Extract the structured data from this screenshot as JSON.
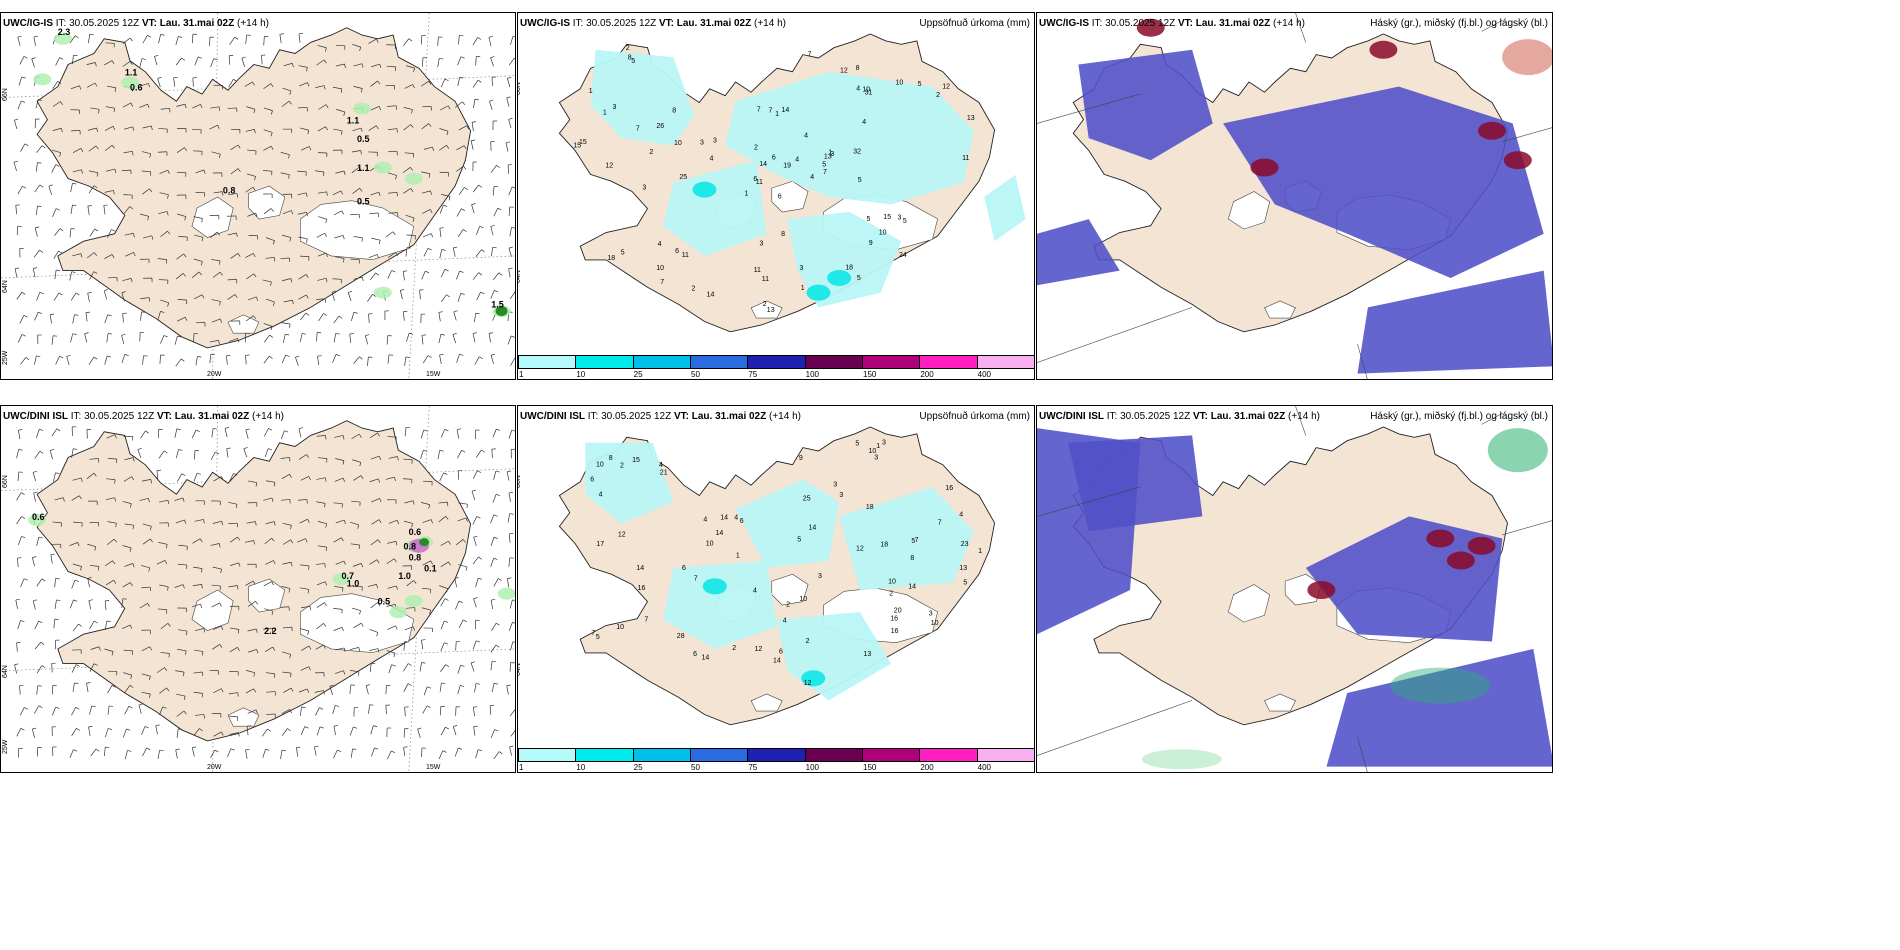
{
  "panels": [
    {
      "id": "r1c1",
      "model": "UWC/IG-IS",
      "it": "30.05.2025 12Z",
      "vt": "Lau. 31.mai 02Z",
      "lead": "(+14 h)",
      "right_title": "",
      "type": "wind"
    },
    {
      "id": "r1c2",
      "model": "UWC/IG-IS",
      "it": "30.05.2025 12Z",
      "vt": "Lau. 31.mai 02Z",
      "lead": "(+14 h)",
      "right_title": "Uppsöfnuð úrkoma (mm)",
      "type": "precip"
    },
    {
      "id": "r1c3",
      "model": "UWC/IG-IS",
      "it": "30.05.2025 12Z",
      "vt": "Lau. 31.mai 02Z",
      "lead": "(+14 h)",
      "right_title": "Háský (gr.), miðský (fj.bl.) og lágský (bl.)",
      "type": "cloud"
    },
    {
      "id": "r2c1",
      "model": "UWC/DINI ISL",
      "it": "30.05.2025 12Z",
      "vt": "Lau. 31.mai 02Z",
      "lead": "(+14 h)",
      "right_title": "",
      "type": "wind"
    },
    {
      "id": "r2c2",
      "model": "UWC/DINI ISL",
      "it": "30.05.2025 12Z",
      "vt": "Lau. 31.mai 02Z",
      "lead": "(+14 h)",
      "right_title": "Uppsöfnuð úrkoma (mm)",
      "type": "precip"
    },
    {
      "id": "r2c3",
      "model": "UWC/DINI ISL",
      "it": "30.05.2025 12Z",
      "vt": "Lau. 31.mai 02Z",
      "lead": "(+14 h)",
      "right_title": "Háský (gr.), miðský (fj.bl.) og lágský (bl.)",
      "type": "cloud"
    }
  ],
  "labels": {
    "it_prefix": "IT:",
    "vt_prefix": "VT:"
  },
  "axes": {
    "lon_20w": "20W",
    "lon_15w": "15W",
    "lat_66n": "66N",
    "lat_64n": "64N",
    "lon_25w": "25W"
  },
  "colorbar": {
    "ticks": [
      "1",
      "10",
      "25",
      "50",
      "75",
      "100",
      "150",
      "200",
      "400"
    ],
    "colors": [
      "#b4fafa",
      "#00eaea",
      "#00bfe8",
      "#2a6be0",
      "#2020b0",
      "#6a0050",
      "#b0007a",
      "#ff1fc0",
      "#f8b0f0"
    ]
  },
  "colors": {
    "land": "#f4e4d4",
    "ocean": "#ffffff",
    "glacier": "#ffffff",
    "precip_light": "#b8f6f6",
    "precip_mid": "#20e8e8",
    "cloud_low": "#5050c8",
    "cloud_mid": "#2a55e0",
    "cloud_high": "#8a0a2a",
    "wind_precip": "#b0f0b0"
  },
  "wind_labels": {
    "r1c1": [
      "2.3",
      "1.1",
      "0.6",
      "1.1",
      "0.5",
      "1.1",
      "0.8",
      "0.5",
      "1.5"
    ],
    "r2c1": [
      "0.6",
      "0.6",
      "0.8",
      "0.8",
      "0.1",
      "0.7",
      "1.0",
      "1.0",
      "0.5",
      "2.2"
    ]
  },
  "precip_labels": {
    "r1c2": [
      "6",
      "1",
      "11",
      "13",
      "11",
      "8",
      "14",
      "10",
      "4",
      "5",
      "12",
      "1",
      "4",
      "7",
      "4",
      "5",
      "3",
      "7",
      "7",
      "3",
      "5",
      "3",
      "5",
      "6",
      "11",
      "14",
      "8",
      "10",
      "6",
      "3",
      "7",
      "3",
      "2",
      "9",
      "5",
      "11",
      "7",
      "18",
      "13",
      "10",
      "5",
      "10",
      "8",
      "3",
      "12",
      "25",
      "15",
      "26",
      "5",
      "2",
      "12",
      "6",
      "3",
      "14",
      "15",
      "10",
      "7",
      "2",
      "1",
      "4",
      "5",
      "2",
      "11",
      "8",
      "18",
      "32",
      "24",
      "19",
      "15",
      "13",
      "4",
      "31",
      "3",
      "4",
      "2",
      "1",
      "2",
      "4",
      "1",
      "1"
    ],
    "r2c2": [
      "2",
      "5",
      "6",
      "5",
      "3",
      "4",
      "6",
      "10",
      "2",
      "1",
      "2",
      "3",
      "4",
      "7",
      "10",
      "5",
      "4",
      "20",
      "21",
      "8",
      "12",
      "13",
      "14",
      "7",
      "13",
      "10",
      "16",
      "14",
      "6",
      "10",
      "3",
      "12",
      "3",
      "28",
      "8",
      "12",
      "17",
      "14",
      "10",
      "16",
      "18",
      "16",
      "15",
      "14",
      "14",
      "9",
      "12",
      "4",
      "6",
      "7",
      "3",
      "1",
      "2",
      "5",
      "1",
      "6",
      "14",
      "16",
      "3",
      "10",
      "7",
      "23",
      "14",
      "25",
      "18",
      "4",
      "2",
      "5",
      "4",
      "4",
      "10",
      "7"
    ]
  }
}
